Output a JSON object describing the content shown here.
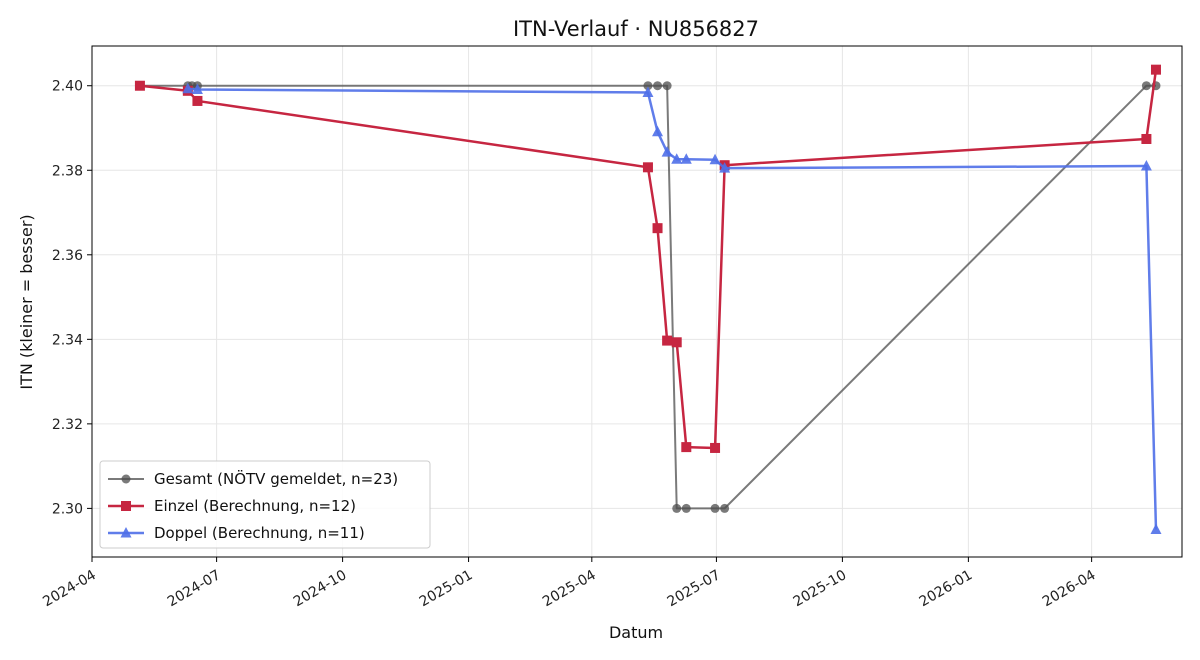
{
  "chart_data": {
    "type": "line",
    "title": "ITN-Verlauf · NU856827",
    "xlabel": "Datum",
    "ylabel": "ITN  (kleiner = besser)",
    "x_type": "date",
    "xlim": [
      "2024-04-01",
      "2026-06-06"
    ],
    "ylim": [
      2.2885,
      2.4094
    ],
    "y_ticks": [
      2.3,
      2.32,
      2.34,
      2.36,
      2.38,
      2.4
    ],
    "y_tick_labels": [
      "2.30",
      "2.32",
      "2.34",
      "2.36",
      "2.38",
      "2.40"
    ],
    "x_ticks": [
      "2024-04-01",
      "2024-07-01",
      "2024-10-01",
      "2025-01-01",
      "2025-04-01",
      "2025-07-01",
      "2025-10-01",
      "2026-01-01",
      "2026-04-01"
    ],
    "x_tick_labels": [
      "2024-04",
      "2024-07",
      "2024-10",
      "2025-01",
      "2025-04",
      "2025-07",
      "2025-10",
      "2026-01",
      "2026-04"
    ],
    "grid": true,
    "legend_position": "lower-left",
    "series": [
      {
        "name": "Gesamt (NÖTV gemeldet, n=23)",
        "color": "#4d4d4d",
        "marker": "circle",
        "points": [
          [
            "2024-05-06",
            2.4
          ],
          [
            "2024-06-10",
            2.4
          ],
          [
            "2024-06-13",
            2.4
          ],
          [
            "2024-06-17",
            2.4
          ],
          [
            "2025-05-12",
            2.4
          ],
          [
            "2025-05-19",
            2.4
          ],
          [
            "2025-05-26",
            2.4
          ],
          [
            "2025-06-02",
            2.3
          ],
          [
            "2025-06-09",
            2.3
          ],
          [
            "2025-06-30",
            2.3
          ],
          [
            "2025-07-07",
            2.3
          ],
          [
            "2026-05-11",
            2.4
          ],
          [
            "2026-05-18",
            2.4
          ]
        ]
      },
      {
        "name": "Einzel (Berechnung, n=12)",
        "color": "#c62641",
        "marker": "square",
        "points": [
          [
            "2024-05-06",
            2.4
          ],
          [
            "2024-06-10",
            2.3988
          ],
          [
            "2024-06-17",
            2.3964
          ],
          [
            "2025-05-12",
            2.3807
          ],
          [
            "2025-05-19",
            2.3663
          ],
          [
            "2025-05-26",
            2.3397
          ],
          [
            "2025-06-02",
            2.3393
          ],
          [
            "2025-06-09",
            2.3145
          ],
          [
            "2025-06-30",
            2.3143
          ],
          [
            "2025-07-07",
            2.3812
          ],
          [
            "2026-05-11",
            2.3874
          ],
          [
            "2026-05-18",
            2.4038
          ]
        ]
      },
      {
        "name": "Doppel (Berechnung, n=11)",
        "color": "#4f6fe8",
        "marker": "triangle",
        "points": [
          [
            "2024-06-10",
            2.3993
          ],
          [
            "2024-06-17",
            2.3991
          ],
          [
            "2025-05-12",
            2.3984
          ],
          [
            "2025-05-19",
            2.3891
          ],
          [
            "2025-05-26",
            2.3843
          ],
          [
            "2025-06-02",
            2.3826
          ],
          [
            "2025-06-09",
            2.3826
          ],
          [
            "2025-06-30",
            2.3825
          ],
          [
            "2025-07-07",
            2.3805
          ],
          [
            "2026-05-11",
            2.381
          ],
          [
            "2026-05-18",
            2.295
          ]
        ]
      }
    ]
  }
}
